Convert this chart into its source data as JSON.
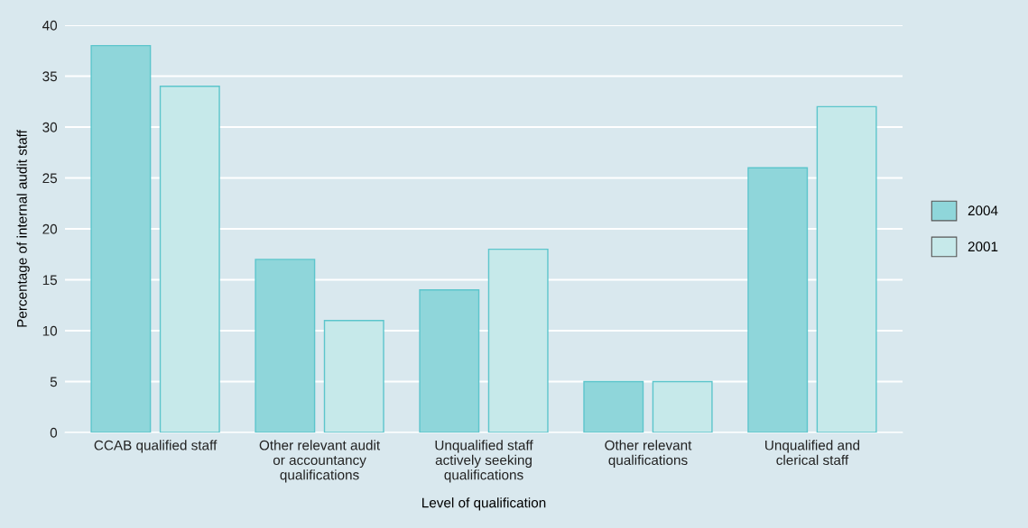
{
  "chart_data": {
    "type": "bar",
    "xlabel": "Level of qualification",
    "ylabel": "Percentage of internal audit staff",
    "categories": [
      "CCAB qualified staff",
      "Other relevant audit\nor accountancy\nqualifications",
      "Unqualified staff\nactively seeking\nqualifications",
      "Other relevant\nqualifications",
      "Unqualified and\nclerical staff"
    ],
    "series": [
      {
        "name": "2004",
        "color": "#8fd6da",
        "values": [
          38,
          17,
          14,
          5,
          26
        ]
      },
      {
        "name": "2001",
        "color": "#c6e9ea",
        "values": [
          34,
          11,
          18,
          5,
          32
        ]
      }
    ],
    "ylim": [
      0,
      40
    ],
    "yticks": [
      0,
      5,
      10,
      15,
      20,
      25,
      30,
      35,
      40
    ],
    "grid": "y",
    "legend": "right"
  }
}
